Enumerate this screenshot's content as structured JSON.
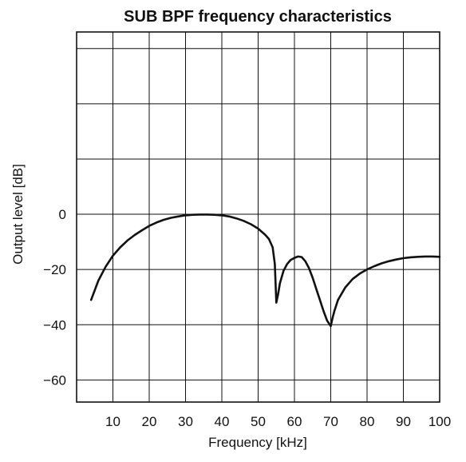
{
  "chart_data": {
    "type": "line",
    "title": "SUB BPF frequency characteristics",
    "xlabel": "Frequency [kHz]",
    "ylabel": "Output level [dB]",
    "xlim": [
      0,
      100
    ],
    "ylim": [
      -68,
      66
    ],
    "grid": true,
    "x_ticks": [
      10,
      20,
      30,
      40,
      50,
      60,
      70,
      80,
      90,
      100
    ],
    "x_tick_labels": [
      "10",
      "20",
      "30",
      "40",
      "50",
      "60",
      "70",
      "80",
      "90",
      "100"
    ],
    "y_ticks": [
      0,
      -20,
      -40,
      -60
    ],
    "y_tick_labels": [
      "0",
      "−20",
      "−40",
      "−60"
    ],
    "y_grid": [
      60,
      40,
      20,
      0,
      -20,
      -40,
      -60
    ],
    "series": [
      {
        "x": [
          4,
          6,
          8,
          10,
          12,
          14,
          16,
          18,
          20,
          22,
          24,
          26,
          28,
          30,
          32,
          34,
          36,
          38,
          40,
          42,
          44,
          46,
          48,
          50,
          52,
          53,
          54,
          54.6,
          55,
          55.5,
          56,
          57,
          58,
          59,
          60,
          61,
          62,
          63,
          64,
          65,
          66,
          67,
          68,
          69,
          69.5,
          70,
          70.5,
          71,
          72,
          74,
          76,
          78,
          80,
          82,
          84,
          86,
          88,
          90,
          92,
          94,
          96,
          98,
          100
        ],
        "y": [
          -31,
          -24,
          -19,
          -15,
          -12,
          -9.5,
          -7.5,
          -5.8,
          -4.2,
          -3.0,
          -2.0,
          -1.3,
          -0.8,
          -0.4,
          -0.2,
          -0.1,
          -0.1,
          -0.2,
          -0.4,
          -0.8,
          -1.5,
          -2.4,
          -3.6,
          -5.2,
          -7.5,
          -9,
          -12,
          -18,
          -32,
          -29,
          -25,
          -20.5,
          -18,
          -16.5,
          -15.8,
          -15.3,
          -15.5,
          -17,
          -19.5,
          -23,
          -27,
          -31,
          -35,
          -38.5,
          -39.5,
          -40.5,
          -37.5,
          -35,
          -31,
          -26.5,
          -23.5,
          -21.5,
          -20,
          -18.8,
          -17.8,
          -17,
          -16.4,
          -15.9,
          -15.6,
          -15.4,
          -15.3,
          -15.3,
          -15.4
        ]
      }
    ]
  }
}
